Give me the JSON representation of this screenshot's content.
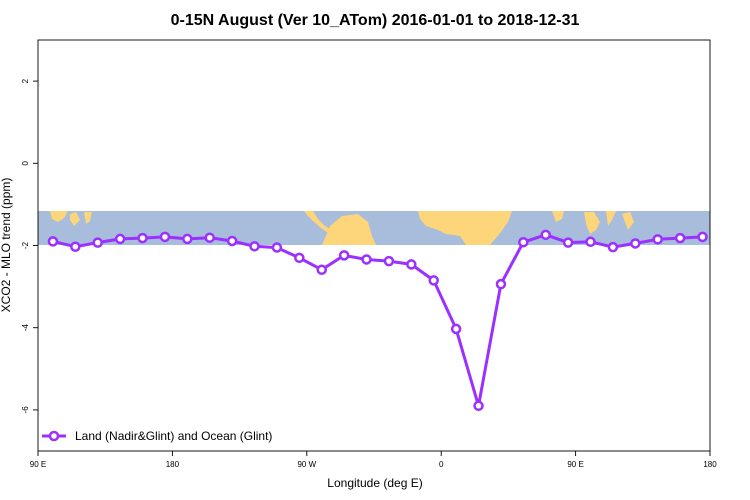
{
  "chart_data": {
    "type": "line",
    "title": "0-15N August (Ver 10_ATom)   2016-01-01 to 2018-12-31",
    "xlabel": "Longitude (deg E)",
    "ylabel": "XCO2 - MLO trend (ppm)",
    "xlim": [
      90,
      450
    ],
    "ylim": [
      -7,
      3
    ],
    "x_ticks": [
      90,
      162,
      234,
      306,
      378,
      450
    ],
    "x_tick_labels": [
      "90 E",
      "180",
      "90 W",
      "0",
      "90 E",
      "180"
    ],
    "y_ticks": [
      -6,
      -4,
      -2,
      0,
      2
    ],
    "y_tick_labels": [
      "-6",
      "-4",
      "-2",
      "0",
      "2"
    ],
    "background_map": {
      "lat_range_label": "0-15N",
      "y_from": -2,
      "y_to": -1.15,
      "ocean_color": "#a8bcdc",
      "land_color": "#fdd57a"
    },
    "series": [
      {
        "name": "Land (Nadir&Glint) and Ocean (Glint)",
        "color": "#9b30ff",
        "x": [
          98,
          110,
          122,
          134,
          146,
          158,
          170,
          182,
          194,
          206,
          218,
          230,
          242,
          254,
          266,
          278,
          290,
          302,
          314,
          326,
          338,
          350,
          362,
          374,
          386,
          398,
          410,
          422,
          434,
          446
        ],
        "y": [
          -1.9,
          -2.03,
          -1.93,
          -1.84,
          -1.82,
          -1.79,
          -1.84,
          -1.81,
          -1.89,
          -2.02,
          -2.05,
          -2.3,
          -2.59,
          -2.24,
          -2.34,
          -2.38,
          -2.46,
          -2.85,
          -4.03,
          -5.9,
          -2.94,
          -1.92,
          -1.74,
          -1.93,
          -1.91,
          -2.04,
          -1.95,
          -1.85,
          -1.82,
          -1.79
        ]
      }
    ],
    "legend_position": "bottom-left"
  }
}
